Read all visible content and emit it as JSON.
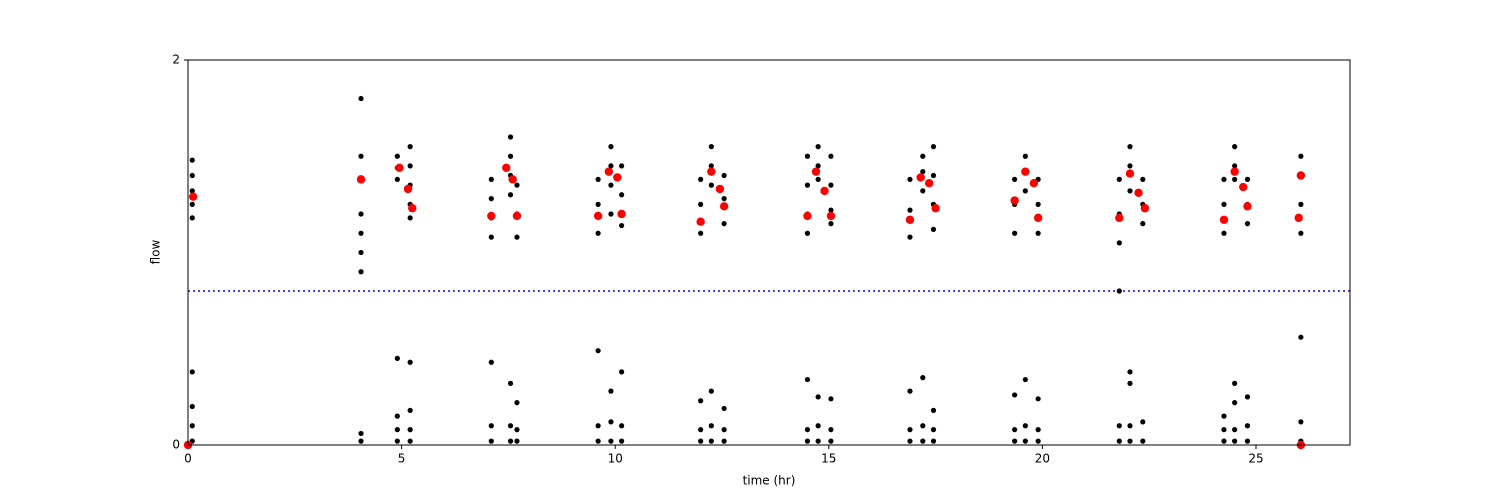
{
  "chart_data": {
    "type": "scatter",
    "xlabel": "time (hr)",
    "ylabel": "flow",
    "xlim": [
      0,
      27.2
    ],
    "ylim": [
      0,
      2
    ],
    "xticks": [
      0,
      5,
      10,
      15,
      20,
      25
    ],
    "yticks": [
      0,
      2
    ],
    "hline": {
      "value": 0.8,
      "color": "#0000ff"
    },
    "series": [
      {
        "color": "#000000",
        "x": [
          0.1,
          0.1,
          0.1,
          0.1,
          0.1,
          0.1,
          0.1,
          0.1,
          0.1,
          4.05,
          4.05,
          4.05,
          4.05,
          4.05,
          4.05,
          4.05,
          4.05,
          4.9,
          4.9,
          4.9,
          4.9,
          4.9,
          4.9,
          4.9,
          5.2,
          5.2,
          5.2,
          5.2,
          5.2,
          5.2,
          5.2,
          5.2,
          5.2,
          7.1,
          7.1,
          7.1,
          7.1,
          7.1,
          7.1,
          7.1,
          7.55,
          7.55,
          7.55,
          7.55,
          7.55,
          7.55,
          7.55,
          7.7,
          7.7,
          7.7,
          7.7,
          7.7,
          7.7,
          9.6,
          9.6,
          9.6,
          9.6,
          9.6,
          9.6,
          9.9,
          9.9,
          9.9,
          9.9,
          9.9,
          9.9,
          9.9,
          10.15,
          10.15,
          10.15,
          10.15,
          10.15,
          10.15,
          12.0,
          12.0,
          12.0,
          12.0,
          12.0,
          12.0,
          12.25,
          12.25,
          12.25,
          12.25,
          12.25,
          12.25,
          12.55,
          12.55,
          12.55,
          12.55,
          12.55,
          12.55,
          14.5,
          14.5,
          14.5,
          14.5,
          14.5,
          14.5,
          14.5,
          14.75,
          14.75,
          14.75,
          14.75,
          14.75,
          14.75,
          15.05,
          15.05,
          15.05,
          15.05,
          15.05,
          15.05,
          15.05,
          16.9,
          16.9,
          16.9,
          16.9,
          16.9,
          16.9,
          17.2,
          17.2,
          17.2,
          17.2,
          17.2,
          17.2,
          17.45,
          17.45,
          17.45,
          17.45,
          17.45,
          17.45,
          17.45,
          19.35,
          19.35,
          19.35,
          19.35,
          19.35,
          19.35,
          19.6,
          19.6,
          19.6,
          19.6,
          19.6,
          19.6,
          19.9,
          19.9,
          19.9,
          19.9,
          19.9,
          19.9,
          21.8,
          21.8,
          21.8,
          21.8,
          21.8,
          21.8,
          22.05,
          22.05,
          22.05,
          22.05,
          22.05,
          22.05,
          22.05,
          22.35,
          22.35,
          22.35,
          22.35,
          22.35,
          24.25,
          24.25,
          24.25,
          24.25,
          24.25,
          24.25,
          24.5,
          24.5,
          24.5,
          24.5,
          24.5,
          24.5,
          24.5,
          24.8,
          24.8,
          24.8,
          24.8,
          24.8,
          24.8,
          26.05,
          26.05,
          26.05,
          26.05,
          26.05,
          26.05,
          26.05
        ],
        "y": [
          1.48,
          1.4,
          1.32,
          1.25,
          1.18,
          0.38,
          0.2,
          0.1,
          0.02,
          1.8,
          1.5,
          1.2,
          1.1,
          1.0,
          0.9,
          0.06,
          0.02,
          1.5,
          1.44,
          1.38,
          0.45,
          0.15,
          0.08,
          0.02,
          1.55,
          1.45,
          1.35,
          1.25,
          1.18,
          0.43,
          0.18,
          0.08,
          0.02,
          1.38,
          1.28,
          1.18,
          1.08,
          0.43,
          0.1,
          0.02,
          1.6,
          1.5,
          1.4,
          1.3,
          0.32,
          0.1,
          0.02,
          1.35,
          1.2,
          1.08,
          0.22,
          0.08,
          0.02,
          1.38,
          1.25,
          1.1,
          0.49,
          0.1,
          0.02,
          1.55,
          1.45,
          1.35,
          1.2,
          0.28,
          0.12,
          0.02,
          1.45,
          1.3,
          1.14,
          0.38,
          0.1,
          0.02,
          1.38,
          1.25,
          1.1,
          0.23,
          0.08,
          0.02,
          1.55,
          1.45,
          1.35,
          0.28,
          0.1,
          0.02,
          1.4,
          1.28,
          1.15,
          0.19,
          0.08,
          0.02,
          1.5,
          1.35,
          1.2,
          1.1,
          0.34,
          0.08,
          0.02,
          1.55,
          1.45,
          1.38,
          0.25,
          0.1,
          0.02,
          1.5,
          1.35,
          1.22,
          1.15,
          0.24,
          0.08,
          0.02,
          1.38,
          1.22,
          1.08,
          0.28,
          0.08,
          0.02,
          1.5,
          1.42,
          1.32,
          0.35,
          0.1,
          0.02,
          1.55,
          1.4,
          1.25,
          1.12,
          0.18,
          0.08,
          0.02,
          1.38,
          1.25,
          1.1,
          0.26,
          0.08,
          0.02,
          1.5,
          1.42,
          1.32,
          0.34,
          0.1,
          0.02,
          1.38,
          1.25,
          1.1,
          0.24,
          0.08,
          0.02,
          1.38,
          1.2,
          1.05,
          0.8,
          0.1,
          0.02,
          1.55,
          1.45,
          1.32,
          0.38,
          0.32,
          0.1,
          0.02,
          1.38,
          1.25,
          1.15,
          0.12,
          0.02,
          1.38,
          1.25,
          1.1,
          0.15,
          0.08,
          0.02,
          1.55,
          1.45,
          1.38,
          0.32,
          0.22,
          0.08,
          0.02,
          1.38,
          1.25,
          1.15,
          0.25,
          0.1,
          0.02,
          1.5,
          1.4,
          1.25,
          1.1,
          0.56,
          0.12,
          0.02
        ]
      },
      {
        "color": "#ff0000",
        "x": [
          0.12,
          4.05,
          4.95,
          5.15,
          5.25,
          7.1,
          7.45,
          7.6,
          7.7,
          9.6,
          9.85,
          10.05,
          10.15,
          12.0,
          12.25,
          12.45,
          12.55,
          14.5,
          14.7,
          14.9,
          15.05,
          16.9,
          17.15,
          17.35,
          17.5,
          19.35,
          19.6,
          19.8,
          19.9,
          21.8,
          22.05,
          22.25,
          22.4,
          24.25,
          24.5,
          24.7,
          24.8,
          26.0,
          26.05,
          26.05,
          0
        ],
        "y": [
          1.29,
          1.38,
          1.44,
          1.33,
          1.23,
          1.19,
          1.44,
          1.38,
          1.19,
          1.19,
          1.42,
          1.39,
          1.2,
          1.16,
          1.42,
          1.33,
          1.24,
          1.19,
          1.42,
          1.32,
          1.19,
          1.17,
          1.39,
          1.36,
          1.23,
          1.27,
          1.42,
          1.36,
          1.18,
          1.18,
          1.41,
          1.31,
          1.23,
          1.17,
          1.42,
          1.34,
          1.24,
          1.18,
          1.4,
          0,
          0
        ]
      }
    ]
  }
}
